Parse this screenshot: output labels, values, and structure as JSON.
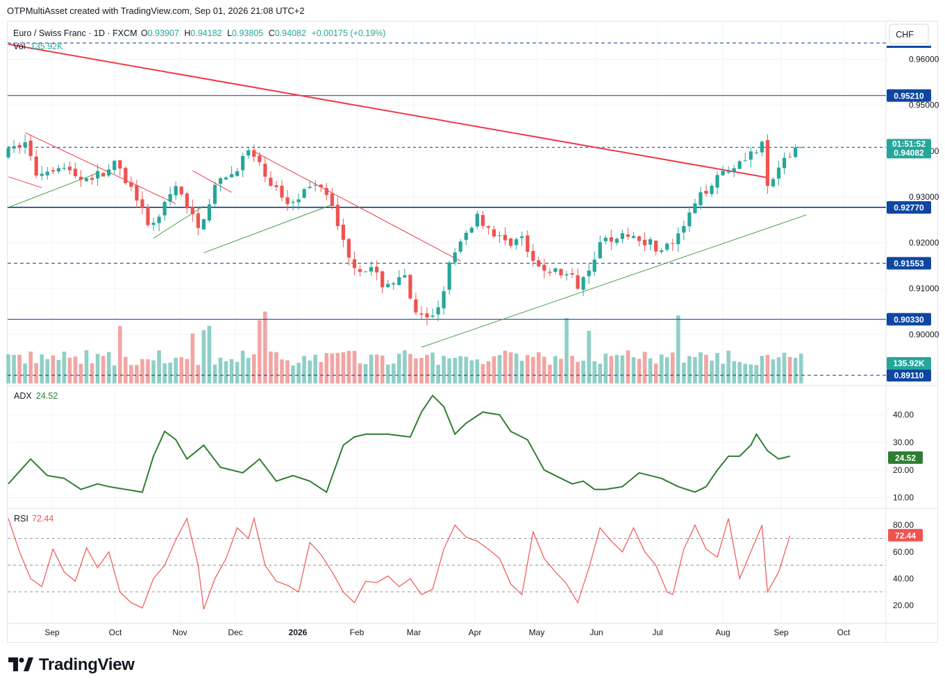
{
  "header": {
    "text": "OTPMultiAsset created with TradingView.com, Sep 01, 2026 21:08 UTC+2"
  },
  "legend": {
    "symbol": "Euro / Swiss Franc · 1D · FXCM",
    "o_label": "O",
    "o_value": "0.93907",
    "h_label": "H",
    "h_value": "0.94182",
    "l_label": "L",
    "l_value": "0.93805",
    "c_label": "C",
    "c_value": "0.94082",
    "change": "+0.00175 (+0.19%)",
    "vol_label": "Vol",
    "vol_value": "135.92K"
  },
  "currency_button": "CHF",
  "brand": "TradingView",
  "colors": {
    "up": "#26a69a",
    "down": "#ef5350",
    "vol_up": "#8fcfc6",
    "vol_down": "#f2a5a3",
    "trend_red": "#f23645",
    "trend_green": "#43a047",
    "level_navy": "#0d3b8c",
    "adx": "#2e7d32",
    "rsi": "#ef5350",
    "badge_dark": "#0d47a1"
  },
  "chart_data": {
    "type": "candlestick",
    "price_axis": {
      "range": [
        0.8893,
        0.9684
      ],
      "ticks": [
        "0.96000",
        "0.95000",
        "0.94000",
        "0.93000",
        "0.92000",
        "0.91000",
        "0.90000"
      ]
    },
    "time_axis": {
      "labels": [
        "Sep",
        "Oct",
        "Nov",
        "Dec",
        "2026",
        "Feb",
        "Mar",
        "Apr",
        "May",
        "Jun",
        "Jul",
        "Aug",
        "Sep",
        "Oct"
      ]
    },
    "levels": [
      {
        "price": 0.9521,
        "label": "0.95210",
        "style": "solid"
      },
      {
        "price": 0.9277,
        "label": "0.92770",
        "style": "solid"
      },
      {
        "price": 0.91553,
        "label": "0.91553",
        "style": "dashed"
      },
      {
        "price": 0.9033,
        "label": "0.90330",
        "style": "solid"
      },
      {
        "price": 0.8911,
        "label": "0.89110",
        "style": "dashed"
      }
    ],
    "last_price": {
      "price": 0.94082,
      "label": "0.94082",
      "countdown": "01:51:52"
    },
    "volume_last": "135.92K",
    "trendlines": [
      {
        "color": "red",
        "points": [
          [
            0,
            0.9633
          ],
          [
            136,
            0.9342
          ]
        ]
      },
      {
        "color": "red",
        "points": [
          [
            0,
            0.9344
          ],
          [
            6,
            0.932
          ]
        ]
      },
      {
        "color": "red",
        "points": [
          [
            3,
            0.944
          ],
          [
            30,
            0.9285
          ]
        ]
      },
      {
        "color": "red",
        "points": [
          [
            33,
            0.9357
          ],
          [
            40,
            0.931
          ]
        ]
      },
      {
        "color": "red",
        "points": [
          [
            44,
            0.9399
          ],
          [
            81,
            0.916
          ]
        ]
      },
      {
        "color": "green",
        "points": [
          [
            0,
            0.9277
          ],
          [
            16,
            0.9352
          ]
        ]
      },
      {
        "color": "green",
        "points": [
          [
            26,
            0.921
          ],
          [
            35,
            0.928
          ]
        ]
      },
      {
        "color": "green",
        "points": [
          [
            35,
            0.9178
          ],
          [
            58,
            0.9283
          ]
        ]
      },
      {
        "color": "green",
        "points": [
          [
            74,
            0.8972
          ],
          [
            143,
            0.9261
          ]
        ]
      }
    ],
    "adx": {
      "label": "ADX",
      "value": "24.52",
      "range": [
        6.4,
        49.6
      ],
      "ticks": [
        "40.00",
        "30.00",
        "20.00",
        "10.00"
      ],
      "anchors": [
        [
          0,
          15
        ],
        [
          4,
          24
        ],
        [
          7,
          18
        ],
        [
          10,
          17
        ],
        [
          13,
          13
        ],
        [
          16,
          15
        ],
        [
          18,
          14
        ],
        [
          21,
          13
        ],
        [
          24,
          12
        ],
        [
          26,
          25
        ],
        [
          28,
          34
        ],
        [
          30,
          31
        ],
        [
          32,
          24
        ],
        [
          35,
          29
        ],
        [
          38,
          21
        ],
        [
          42,
          19
        ],
        [
          45,
          24
        ],
        [
          48,
          16
        ],
        [
          51,
          18
        ],
        [
          54,
          16
        ],
        [
          57,
          12
        ],
        [
          60,
          29
        ],
        [
          62,
          32
        ],
        [
          64,
          33
        ],
        [
          68,
          33
        ],
        [
          72,
          32
        ],
        [
          74,
          41
        ],
        [
          76,
          47
        ],
        [
          78,
          43
        ],
        [
          80,
          33
        ],
        [
          82,
          37
        ],
        [
          85,
          41
        ],
        [
          88,
          40
        ],
        [
          90,
          34
        ],
        [
          93,
          31
        ],
        [
          96,
          20
        ],
        [
          99,
          17
        ],
        [
          101,
          15
        ],
        [
          103,
          16
        ],
        [
          105,
          13
        ],
        [
          107,
          13
        ],
        [
          110,
          14
        ],
        [
          113,
          19
        ],
        [
          115,
          18
        ],
        [
          117,
          17
        ],
        [
          120,
          14
        ],
        [
          123,
          12
        ],
        [
          125,
          14
        ],
        [
          127,
          20
        ],
        [
          129,
          25
        ],
        [
          131,
          25
        ],
        [
          133,
          29
        ],
        [
          134,
          33
        ],
        [
          136,
          27
        ],
        [
          138,
          24
        ],
        [
          140,
          25
        ]
      ]
    },
    "rsi": {
      "label": "RSI",
      "value": "72.44",
      "range": [
        7,
        91
      ],
      "ticks": [
        "80.00",
        "60.00",
        "40.00",
        "20.00"
      ],
      "bands": [
        70,
        50,
        30
      ],
      "anchors": [
        [
          0,
          85
        ],
        [
          2,
          60
        ],
        [
          4,
          40
        ],
        [
          6,
          34
        ],
        [
          8,
          62
        ],
        [
          10,
          45
        ],
        [
          12,
          38
        ],
        [
          14,
          63
        ],
        [
          16,
          48
        ],
        [
          18,
          60
        ],
        [
          20,
          30
        ],
        [
          22,
          22
        ],
        [
          24,
          18
        ],
        [
          26,
          40
        ],
        [
          28,
          50
        ],
        [
          30,
          69
        ],
        [
          32,
          85
        ],
        [
          34,
          50
        ],
        [
          35,
          17
        ],
        [
          37,
          40
        ],
        [
          39,
          55
        ],
        [
          41,
          78
        ],
        [
          43,
          70
        ],
        [
          44,
          85
        ],
        [
          46,
          50
        ],
        [
          48,
          38
        ],
        [
          50,
          35
        ],
        [
          52,
          30
        ],
        [
          54,
          67
        ],
        [
          56,
          58
        ],
        [
          58,
          45
        ],
        [
          60,
          30
        ],
        [
          62,
          22
        ],
        [
          64,
          38
        ],
        [
          66,
          37
        ],
        [
          68,
          42
        ],
        [
          70,
          34
        ],
        [
          72,
          40
        ],
        [
          74,
          28
        ],
        [
          76,
          32
        ],
        [
          78,
          62
        ],
        [
          80,
          80
        ],
        [
          82,
          71
        ],
        [
          84,
          68
        ],
        [
          86,
          62
        ],
        [
          88,
          55
        ],
        [
          90,
          36
        ],
        [
          92,
          28
        ],
        [
          94,
          75
        ],
        [
          96,
          55
        ],
        [
          98,
          45
        ],
        [
          100,
          36
        ],
        [
          102,
          22
        ],
        [
          104,
          48
        ],
        [
          106,
          78
        ],
        [
          108,
          68
        ],
        [
          110,
          60
        ],
        [
          112,
          78
        ],
        [
          114,
          60
        ],
        [
          116,
          50
        ],
        [
          118,
          30
        ],
        [
          119,
          28
        ],
        [
          121,
          62
        ],
        [
          123,
          80
        ],
        [
          125,
          62
        ],
        [
          127,
          56
        ],
        [
          129,
          85
        ],
        [
          131,
          40
        ],
        [
          133,
          60
        ],
        [
          135,
          80
        ],
        [
          136,
          30
        ],
        [
          138,
          45
        ],
        [
          140,
          72
        ]
      ]
    }
  }
}
